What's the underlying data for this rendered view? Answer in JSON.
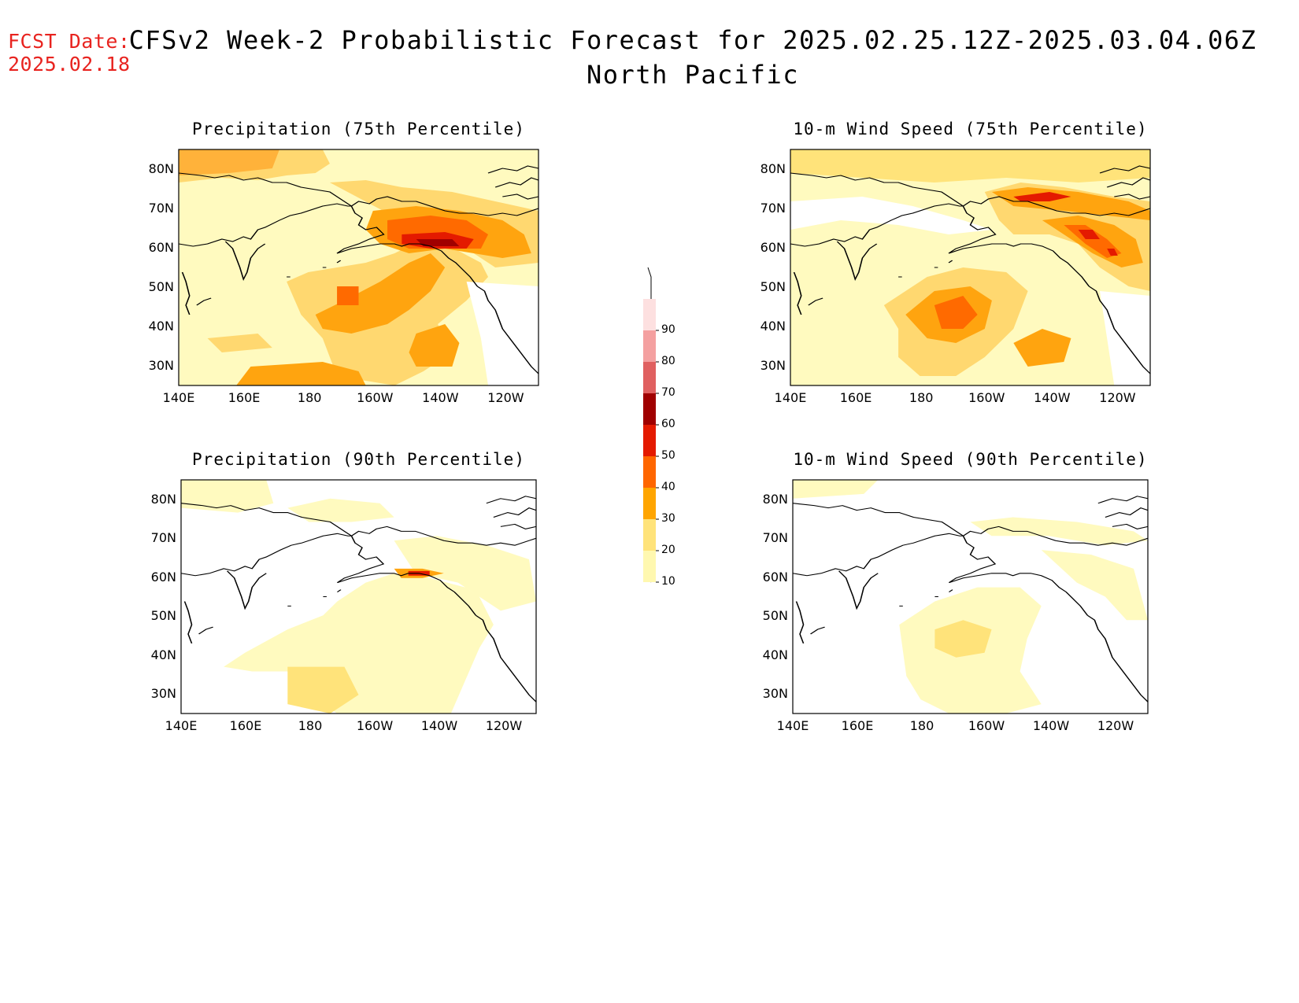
{
  "fcst_date": {
    "label": "FCST Date:",
    "value": "2025.02.18"
  },
  "title": {
    "line1": "CFSv2 Week-2 Probabilistic Forecast for 2025.02.25.12Z-2025.03.04.06Z",
    "line2": "North Pacific"
  },
  "panels": [
    {
      "id": "precip75",
      "title": "Precipitation (75th Percentile)"
    },
    {
      "id": "wind75",
      "title": "10-m Wind Speed (75th Percentile)"
    },
    {
      "id": "precip90",
      "title": "Precipitation (90th Percentile)"
    },
    {
      "id": "wind90",
      "title": "10-m Wind Speed (90th Percentile)"
    }
  ],
  "axes": {
    "lat_labels": [
      "80N",
      "70N",
      "60N",
      "50N",
      "40N",
      "30N"
    ],
    "lon_labels": [
      "140E",
      "160E",
      "180",
      "160W",
      "140W",
      "120W"
    ]
  },
  "colorbar": {
    "levels": [
      "10",
      "20",
      "30",
      "40",
      "50",
      "60",
      "70",
      "80",
      "90"
    ],
    "colors": [
      "#fff8b0",
      "#ffe37a",
      "#ffa500",
      "#ff6600",
      "#e41a00",
      "#a00000",
      "#e06060",
      "#f4a0a0",
      "#fde0e0"
    ]
  }
}
